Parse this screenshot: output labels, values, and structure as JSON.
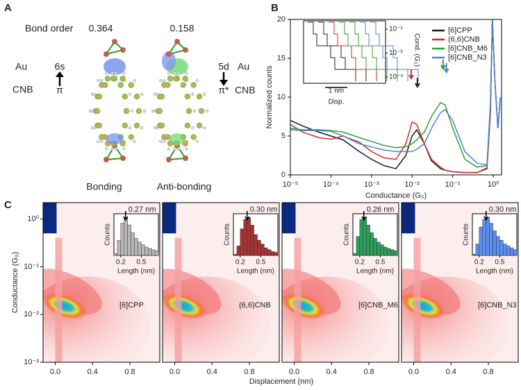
{
  "panel_labels": [
    "A",
    "B",
    "C"
  ],
  "panel_a": {
    "row_label": "Bond order",
    "bond_orders": [
      0.364,
      0.158
    ],
    "left": {
      "metal": "Au",
      "orbital": "6s",
      "ligand": "CNB",
      "ligand_orbital": "π"
    },
    "right": {
      "orbital": "5d",
      "metal": "Au",
      "ligand_orbital": "π*",
      "ligand": "CNB"
    },
    "captions": [
      "Bonding",
      "Anti-bonding"
    ]
  },
  "chart_data": [
    {
      "type": "line",
      "x_label": "Conductance (G₀)",
      "y_label": "Normalized counts",
      "xlog": true,
      "xlim": [
        1e-05,
        1.6
      ],
      "xticks": [
        {
          "value": 1e-05,
          "label": "10⁻⁵"
        },
        {
          "value": 0.0001,
          "label": "10⁻⁴"
        },
        {
          "value": 0.001,
          "label": "10⁻³"
        },
        {
          "value": 0.01,
          "label": "10⁻²"
        },
        {
          "value": 0.1,
          "label": "10⁻¹"
        },
        {
          "value": 1,
          "label": "10⁰"
        }
      ],
      "ylim": [
        0,
        20
      ],
      "yticks": [
        0,
        5,
        10,
        15,
        20
      ],
      "x": [
        1e-05,
        2e-05,
        5e-05,
        0.0001,
        0.0002,
        0.0005,
        0.001,
        0.002,
        0.004,
        0.007,
        0.01,
        0.013,
        0.02,
        0.03,
        0.05,
        0.065,
        0.1,
        0.2,
        0.4,
        0.7,
        0.85,
        0.95,
        1.1,
        1.3,
        1.5
      ],
      "series": [
        {
          "name": "[6]CPP",
          "color": "#1a1a1a",
          "values": [
            7,
            6.3,
            5.5,
            5,
            4.5,
            3,
            2,
            1.2,
            0.8,
            2.5,
            5,
            5.8,
            4,
            1.8,
            0.8,
            0.6,
            0.4,
            0.3,
            0.3,
            0.8,
            8,
            20,
            12,
            6,
            10
          ]
        },
        {
          "name": "(6,6)CNB",
          "color": "#d62728",
          "values": [
            6.5,
            5.5,
            4.8,
            4.6,
            5,
            4.2,
            3,
            2.2,
            2,
            4,
            6.8,
            6.5,
            4,
            2,
            1,
            0.6,
            0.4,
            0.3,
            0.3,
            0.9,
            8,
            20,
            12,
            6,
            10
          ]
        },
        {
          "name": "[6]CNB_M6",
          "color": "#2ca02c",
          "values": [
            6,
            5.8,
            5.8,
            5.7,
            5.5,
            4.8,
            4.3,
            3.8,
            3.5,
            3.6,
            4,
            4.5,
            5.5,
            7.5,
            9.3,
            9,
            6,
            2,
            1,
            1.2,
            9,
            20,
            12,
            6,
            10
          ]
        },
        {
          "name": "[6]CNB_N3",
          "color": "#4a7fe0",
          "values": [
            5.8,
            5.7,
            5.7,
            5.6,
            5,
            4,
            3.6,
            3.2,
            3,
            3,
            3,
            3.3,
            4,
            6,
            8,
            8.4,
            7,
            3,
            1.5,
            1.3,
            9,
            20,
            12,
            6,
            10
          ]
        }
      ],
      "inset": {
        "y_label": "Cond. (G₀)",
        "yticks": [
          {
            "value": 0.1,
            "label": "10⁻¹"
          },
          {
            "value": 0.001,
            "label": "10⁻³"
          },
          {
            "value": 1e-05,
            "label": "10⁻⁵"
          }
        ],
        "scale_bar": "1 nm",
        "x_label": "Disp."
      }
    },
    {
      "type": "histogram2d",
      "x_label": "Displacement (nm)",
      "y_label": "Conductance (G₀)",
      "ylog": true,
      "ylim": [
        0.001,
        2.2
      ],
      "yticks": [
        {
          "value": 0.001,
          "label": "10⁻³"
        },
        {
          "value": 0.01,
          "label": "10⁻²"
        },
        {
          "value": 0.1,
          "label": "10⁻¹"
        },
        {
          "value": 1,
          "label": "10⁰"
        }
      ],
      "xlim": [
        -0.13,
        1.12
      ],
      "xticks": [
        {
          "value": 0,
          "label": "0.0"
        },
        0.4,
        0.8
      ],
      "inset": {
        "y_label": "Counts",
        "x_label": "Length (nm)",
        "xlim": [
          0.1,
          0.75
        ],
        "xticks": [
          0.2,
          0.5
        ],
        "ylim": [
          0,
          110
        ]
      },
      "panels": [
        {
          "name": "[6]CPP",
          "color": "#b8b8b8",
          "peak": 0.27,
          "peak_label": "0.27 nm",
          "bins": [
            0.1,
            0.15,
            0.2,
            0.25,
            0.3,
            0.35,
            0.4,
            0.45,
            0.5,
            0.55,
            0.6,
            0.65,
            0.7,
            0.75
          ],
          "counts": [
            5,
            40,
            85,
            100,
            80,
            60,
            45,
            35,
            28,
            22,
            18,
            15,
            12
          ]
        },
        {
          "name": "(6,6)CNB",
          "color": "#a83232",
          "peak": 0.3,
          "peak_label": "0.30 nm",
          "bins": [
            0.1,
            0.15,
            0.2,
            0.25,
            0.3,
            0.35,
            0.4,
            0.45,
            0.5,
            0.55,
            0.6,
            0.65,
            0.7,
            0.75
          ],
          "counts": [
            3,
            25,
            70,
            95,
            100,
            80,
            55,
            40,
            30,
            20,
            15,
            10,
            8
          ]
        },
        {
          "name": "[6]CNB_M6",
          "color": "#2e9e5b",
          "peak": 0.26,
          "peak_label": "0.26 nm",
          "bins": [
            0.1,
            0.15,
            0.2,
            0.25,
            0.3,
            0.35,
            0.4,
            0.45,
            0.5,
            0.55,
            0.6,
            0.65,
            0.7,
            0.75
          ],
          "counts": [
            5,
            50,
            95,
            100,
            80,
            60,
            45,
            35,
            28,
            22,
            18,
            15,
            12
          ]
        },
        {
          "name": "[6]CNB_N3",
          "color": "#5b8ff0",
          "peak": 0.3,
          "peak_label": "0.30 nm",
          "bins": [
            0.1,
            0.15,
            0.2,
            0.25,
            0.3,
            0.35,
            0.4,
            0.45,
            0.5,
            0.55,
            0.6,
            0.65,
            0.7,
            0.75
          ],
          "counts": [
            3,
            30,
            75,
            95,
            100,
            85,
            65,
            50,
            40,
            30,
            25,
            20,
            15
          ]
        }
      ]
    }
  ]
}
